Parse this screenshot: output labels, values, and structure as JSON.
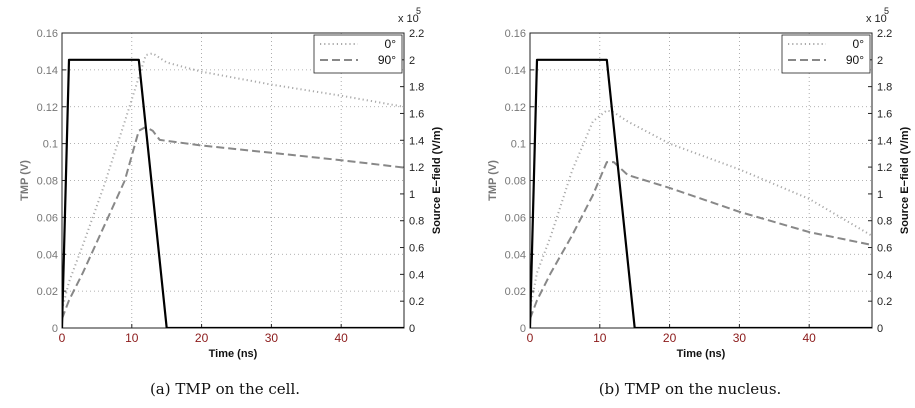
{
  "chart_data": [
    {
      "type": "line",
      "caption": "(a) TMP on the cell.",
      "xlabel": "Time (ns)",
      "ylabel_left": "TMP (V)",
      "ylabel_right": "Source E−field (V/m)",
      "right_exponent_label": "x 10",
      "right_exponent_power": "5",
      "xlim": [
        0,
        49
      ],
      "ylim_left": [
        0,
        0.16
      ],
      "ylim_right": [
        0,
        2.2
      ],
      "xticks": [
        "0",
        "10",
        "20",
        "30",
        "40"
      ],
      "yticks_left": [
        "0",
        "0.02",
        "0.04",
        "0.06",
        "0.08",
        "0.1",
        "0.12",
        "0.14",
        "0.16"
      ],
      "yticks_right": [
        "0",
        "0.2",
        "0.4",
        "0.6",
        "0.8",
        "1",
        "1.2",
        "1.4",
        "1.6",
        "1.8",
        "2",
        "2.2"
      ],
      "grid": true,
      "legend_position": "top-right",
      "series": [
        {
          "name": "0°",
          "axis": "left",
          "style": "dotted",
          "color": "#aaaaaa",
          "x": [
            0,
            1,
            3,
            6,
            9,
            12,
            13,
            15,
            20,
            30,
            40,
            49
          ],
          "y": [
            0.01,
            0.025,
            0.045,
            0.077,
            0.112,
            0.148,
            0.149,
            0.144,
            0.139,
            0.132,
            0.126,
            0.12
          ]
        },
        {
          "name": "90°",
          "axis": "left",
          "style": "dashed",
          "color": "#888888",
          "x": [
            0,
            1,
            3,
            6,
            9,
            11,
            12,
            13,
            14,
            20,
            30,
            40,
            49
          ],
          "y": [
            0.005,
            0.015,
            0.03,
            0.055,
            0.08,
            0.107,
            0.109,
            0.107,
            0.102,
            0.099,
            0.095,
            0.091,
            0.087
          ]
        },
        {
          "name": "Source E-field",
          "axis": "right",
          "style": "solid",
          "color": "#000000",
          "x": [
            0,
            1,
            11,
            15,
            49
          ],
          "y": [
            0,
            2.0,
            2.0,
            0,
            0
          ]
        }
      ]
    },
    {
      "type": "line",
      "caption": "(b) TMP on the nucleus.",
      "xlabel": "Time (ns)",
      "ylabel_left": "TMP (V)",
      "ylabel_right": "Source E−field (V/m)",
      "right_exponent_label": "x 10",
      "right_exponent_power": "5",
      "xlim": [
        0,
        49
      ],
      "ylim_left": [
        0,
        0.16
      ],
      "ylim_right": [
        0,
        2.2
      ],
      "xticks": [
        "0",
        "10",
        "20",
        "30",
        "40"
      ],
      "yticks_left": [
        "0",
        "0.02",
        "0.04",
        "0.06",
        "0.08",
        "0.1",
        "0.12",
        "0.14",
        "0.16"
      ],
      "yticks_right": [
        "0",
        "0.2",
        "0.4",
        "0.6",
        "0.8",
        "1",
        "1.2",
        "1.4",
        "1.6",
        "1.8",
        "2",
        "2.2"
      ],
      "grid": true,
      "legend_position": "top-right",
      "series": [
        {
          "name": "0°",
          "axis": "left",
          "style": "dotted",
          "color": "#aaaaaa",
          "x": [
            0,
            1,
            3,
            6,
            9,
            11,
            12,
            14,
            20,
            30,
            40,
            49
          ],
          "y": [
            0.01,
            0.03,
            0.05,
            0.085,
            0.112,
            0.118,
            0.117,
            0.112,
            0.1,
            0.086,
            0.07,
            0.05
          ]
        },
        {
          "name": "90°",
          "axis": "left",
          "style": "dashed",
          "color": "#888888",
          "x": [
            0,
            1,
            3,
            6,
            9,
            11,
            12,
            14,
            20,
            30,
            40,
            49
          ],
          "y": [
            0.005,
            0.015,
            0.03,
            0.05,
            0.072,
            0.09,
            0.09,
            0.083,
            0.076,
            0.063,
            0.052,
            0.045
          ]
        },
        {
          "name": "Source E-field",
          "axis": "right",
          "style": "solid",
          "color": "#000000",
          "x": [
            0,
            1,
            11,
            15,
            49
          ],
          "y": [
            0,
            2.0,
            2.0,
            0,
            0
          ]
        }
      ]
    }
  ]
}
